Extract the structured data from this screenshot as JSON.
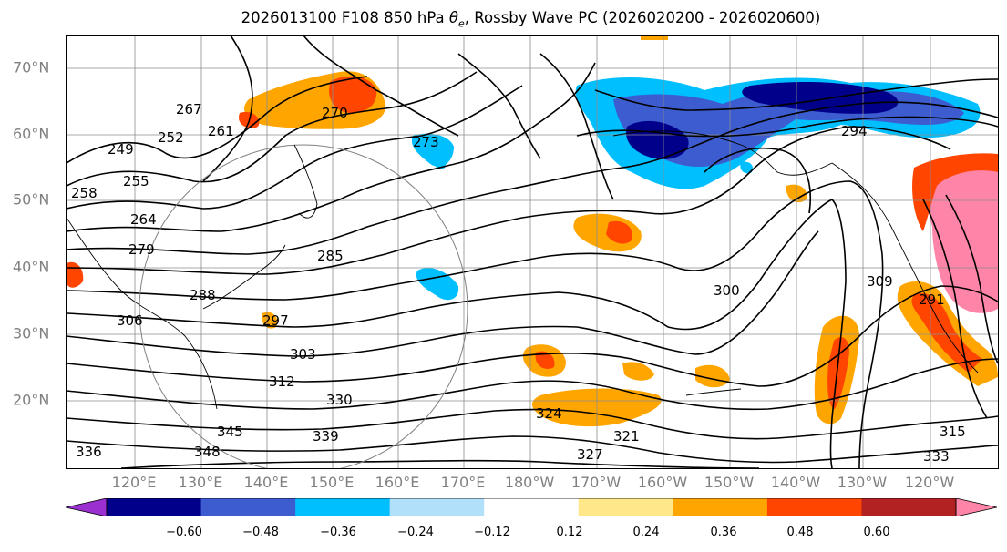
{
  "title": {
    "init": "2026013100",
    "forecast": "F108",
    "level": "850 hPa",
    "variable_prefix": "θ",
    "variable_sub": "e",
    "product": ", Rossby Wave PC (2026020200 - 2026020600)"
  },
  "map": {
    "lat_labels": [
      "70°N",
      "60°N",
      "50°N",
      "40°N",
      "30°N",
      "20°N"
    ],
    "lon_labels": [
      "120°E",
      "130°E",
      "140°E",
      "150°E",
      "160°E",
      "170°E",
      "180°W",
      "170°W",
      "160°W",
      "150°W",
      "140°W",
      "130°W",
      "120°W"
    ],
    "contour_labels": [
      "249",
      "255",
      "258",
      "264",
      "267",
      "270",
      "273",
      "279",
      "285",
      "288",
      "297",
      "300",
      "303",
      "306",
      "309",
      "312",
      "315",
      "321",
      "324",
      "327",
      "330",
      "333",
      "336",
      "339",
      "345",
      "348",
      "261",
      "252",
      "294",
      "291"
    ],
    "grid": true
  },
  "colorbar": {
    "ticks": [
      "−0.60",
      "−0.48",
      "−0.36",
      "−0.24",
      "−0.12",
      "0.12",
      "0.24",
      "0.36",
      "0.48",
      "0.60"
    ],
    "colors": [
      "#9b30d0",
      "#00008b",
      "#3c5ccf",
      "#00bfff",
      "#b0e0fa",
      "#ffffff",
      "#ffe78a",
      "#ffa500",
      "#ff4500",
      "#b22222",
      "#ff85a8"
    ]
  },
  "anomaly_colors": {
    "negative_strong": "#00008b",
    "negative_mid": "#3c5ccf",
    "negative_weak": "#00bfff",
    "positive_weak": "#ffa500",
    "positive_mid": "#ff4500",
    "positive_strong": "#ff85a8"
  }
}
